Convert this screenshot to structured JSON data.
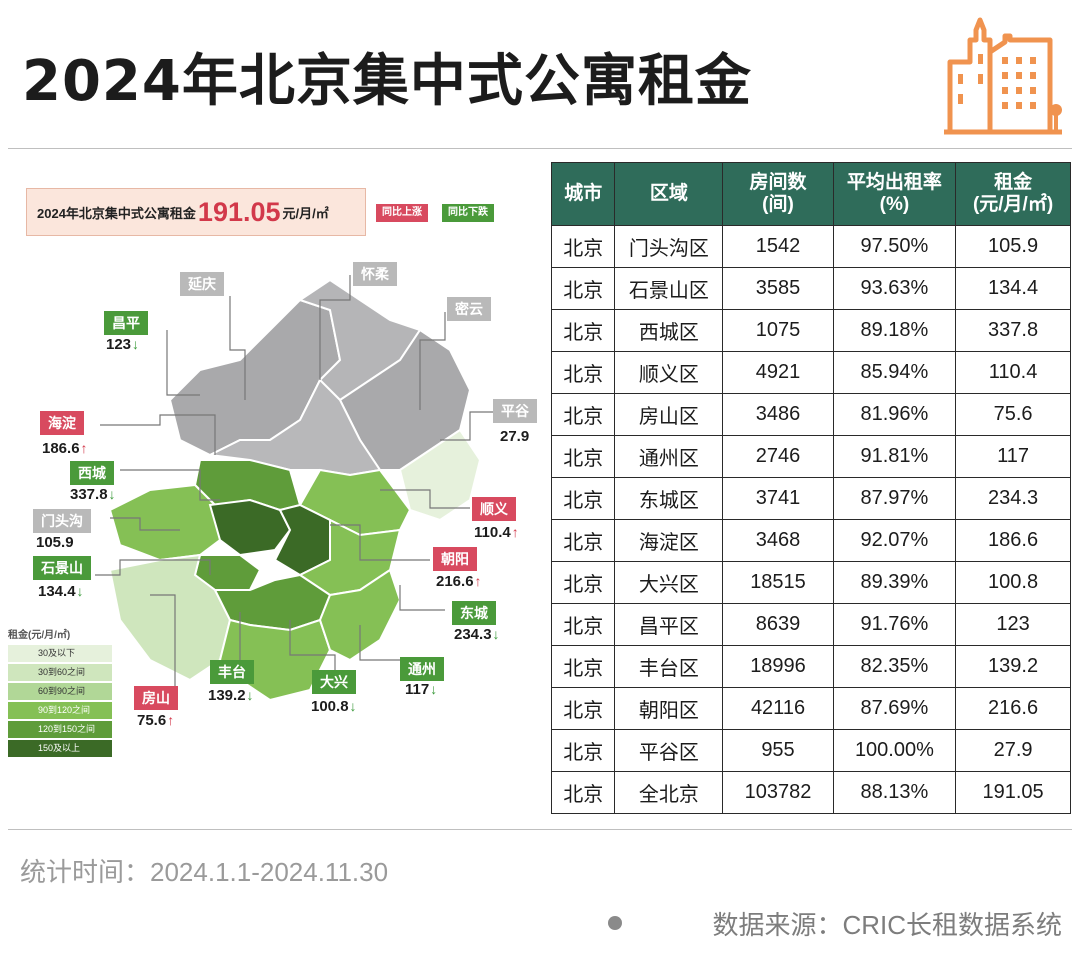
{
  "title": "2024年北京集中式公寓租金",
  "summary": {
    "label": "2024年北京集中式公寓租金",
    "value": "191.05",
    "unit": "元/月/㎡",
    "up_chip": "同比上涨",
    "down_chip": "同比下跌"
  },
  "colors": {
    "header_green": "#2f6c5a",
    "up_red": "#d84a5f",
    "down_green": "#4a9a3a",
    "accent_orange": "#f0934f",
    "gray_label": "#b9b9b9"
  },
  "legend": {
    "title": "租金(元/月/㎡)",
    "items": [
      {
        "label": "30及以下",
        "color": "#e6f1dc"
      },
      {
        "label": "30到60之间",
        "color": "#cfe6bd"
      },
      {
        "label": "60到90之间",
        "color": "#b1d797"
      },
      {
        "label": "90到120之间",
        "color": "#85c055"
      },
      {
        "label": "120到150之间",
        "color": "#5f9c3a"
      },
      {
        "label": "150及以上",
        "color": "#3b6a26"
      }
    ]
  },
  "map_labels": [
    {
      "name": "延庆",
      "value": "",
      "trend": "",
      "style": "gray"
    },
    {
      "name": "怀柔",
      "value": "",
      "trend": "",
      "style": "gray"
    },
    {
      "name": "密云",
      "value": "",
      "trend": "",
      "style": "gray"
    },
    {
      "name": "昌平",
      "value": "123",
      "trend": "down",
      "style": "green"
    },
    {
      "name": "平谷",
      "value": "27.9",
      "trend": "",
      "style": "gray"
    },
    {
      "name": "海淀",
      "value": "186.6",
      "trend": "up",
      "style": "red"
    },
    {
      "name": "西城",
      "value": "337.8",
      "trend": "down",
      "style": "green"
    },
    {
      "name": "顺义",
      "value": "110.4",
      "trend": "up",
      "style": "red"
    },
    {
      "name": "门头沟",
      "value": "105.9",
      "trend": "",
      "style": "gray"
    },
    {
      "name": "朝阳",
      "value": "216.6",
      "trend": "up",
      "style": "red"
    },
    {
      "name": "石景山",
      "value": "134.4",
      "trend": "down",
      "style": "green"
    },
    {
      "name": "东城",
      "value": "234.3",
      "trend": "down",
      "style": "green"
    },
    {
      "name": "丰台",
      "value": "139.2",
      "trend": "down",
      "style": "green"
    },
    {
      "name": "大兴",
      "value": "100.8",
      "trend": "",
      "style": "green"
    },
    {
      "name": "通州",
      "value": "117",
      "trend": "down",
      "style": "green"
    },
    {
      "name": "房山",
      "value": "75.6",
      "trend": "up",
      "style": "red"
    }
  ],
  "arrows": {
    "up": "↑",
    "down": "↓"
  },
  "chart_data": {
    "type": "table",
    "columns": [
      "城市",
      "区域",
      "房间数\n(间)",
      "平均出租率\n(%)",
      "租金\n(元/月/㎡)"
    ],
    "rows": [
      [
        "北京",
        "门头沟区",
        "1542",
        "97.50%",
        "105.9"
      ],
      [
        "北京",
        "石景山区",
        "3585",
        "93.63%",
        "134.4"
      ],
      [
        "北京",
        "西城区",
        "1075",
        "89.18%",
        "337.8"
      ],
      [
        "北京",
        "顺义区",
        "4921",
        "85.94%",
        "110.4"
      ],
      [
        "北京",
        "房山区",
        "3486",
        "81.96%",
        "75.6"
      ],
      [
        "北京",
        "通州区",
        "2746",
        "91.81%",
        "117"
      ],
      [
        "北京",
        "东城区",
        "3741",
        "87.97%",
        "234.3"
      ],
      [
        "北京",
        "海淀区",
        "3468",
        "92.07%",
        "186.6"
      ],
      [
        "北京",
        "大兴区",
        "18515",
        "89.39%",
        "100.8"
      ],
      [
        "北京",
        "昌平区",
        "8639",
        "91.76%",
        "123"
      ],
      [
        "北京",
        "丰台区",
        "18996",
        "82.35%",
        "139.2"
      ],
      [
        "北京",
        "朝阳区",
        "42116",
        "87.69%",
        "216.6"
      ],
      [
        "北京",
        "平谷区",
        "955",
        "100.00%",
        "27.9"
      ],
      [
        "北京",
        "全北京",
        "103782",
        "88.13%",
        "191.05"
      ]
    ]
  },
  "footer": {
    "date": "统计时间：2024.1.1-2024.11.30",
    "source": "数据来源：CRIC长租数据系统"
  }
}
